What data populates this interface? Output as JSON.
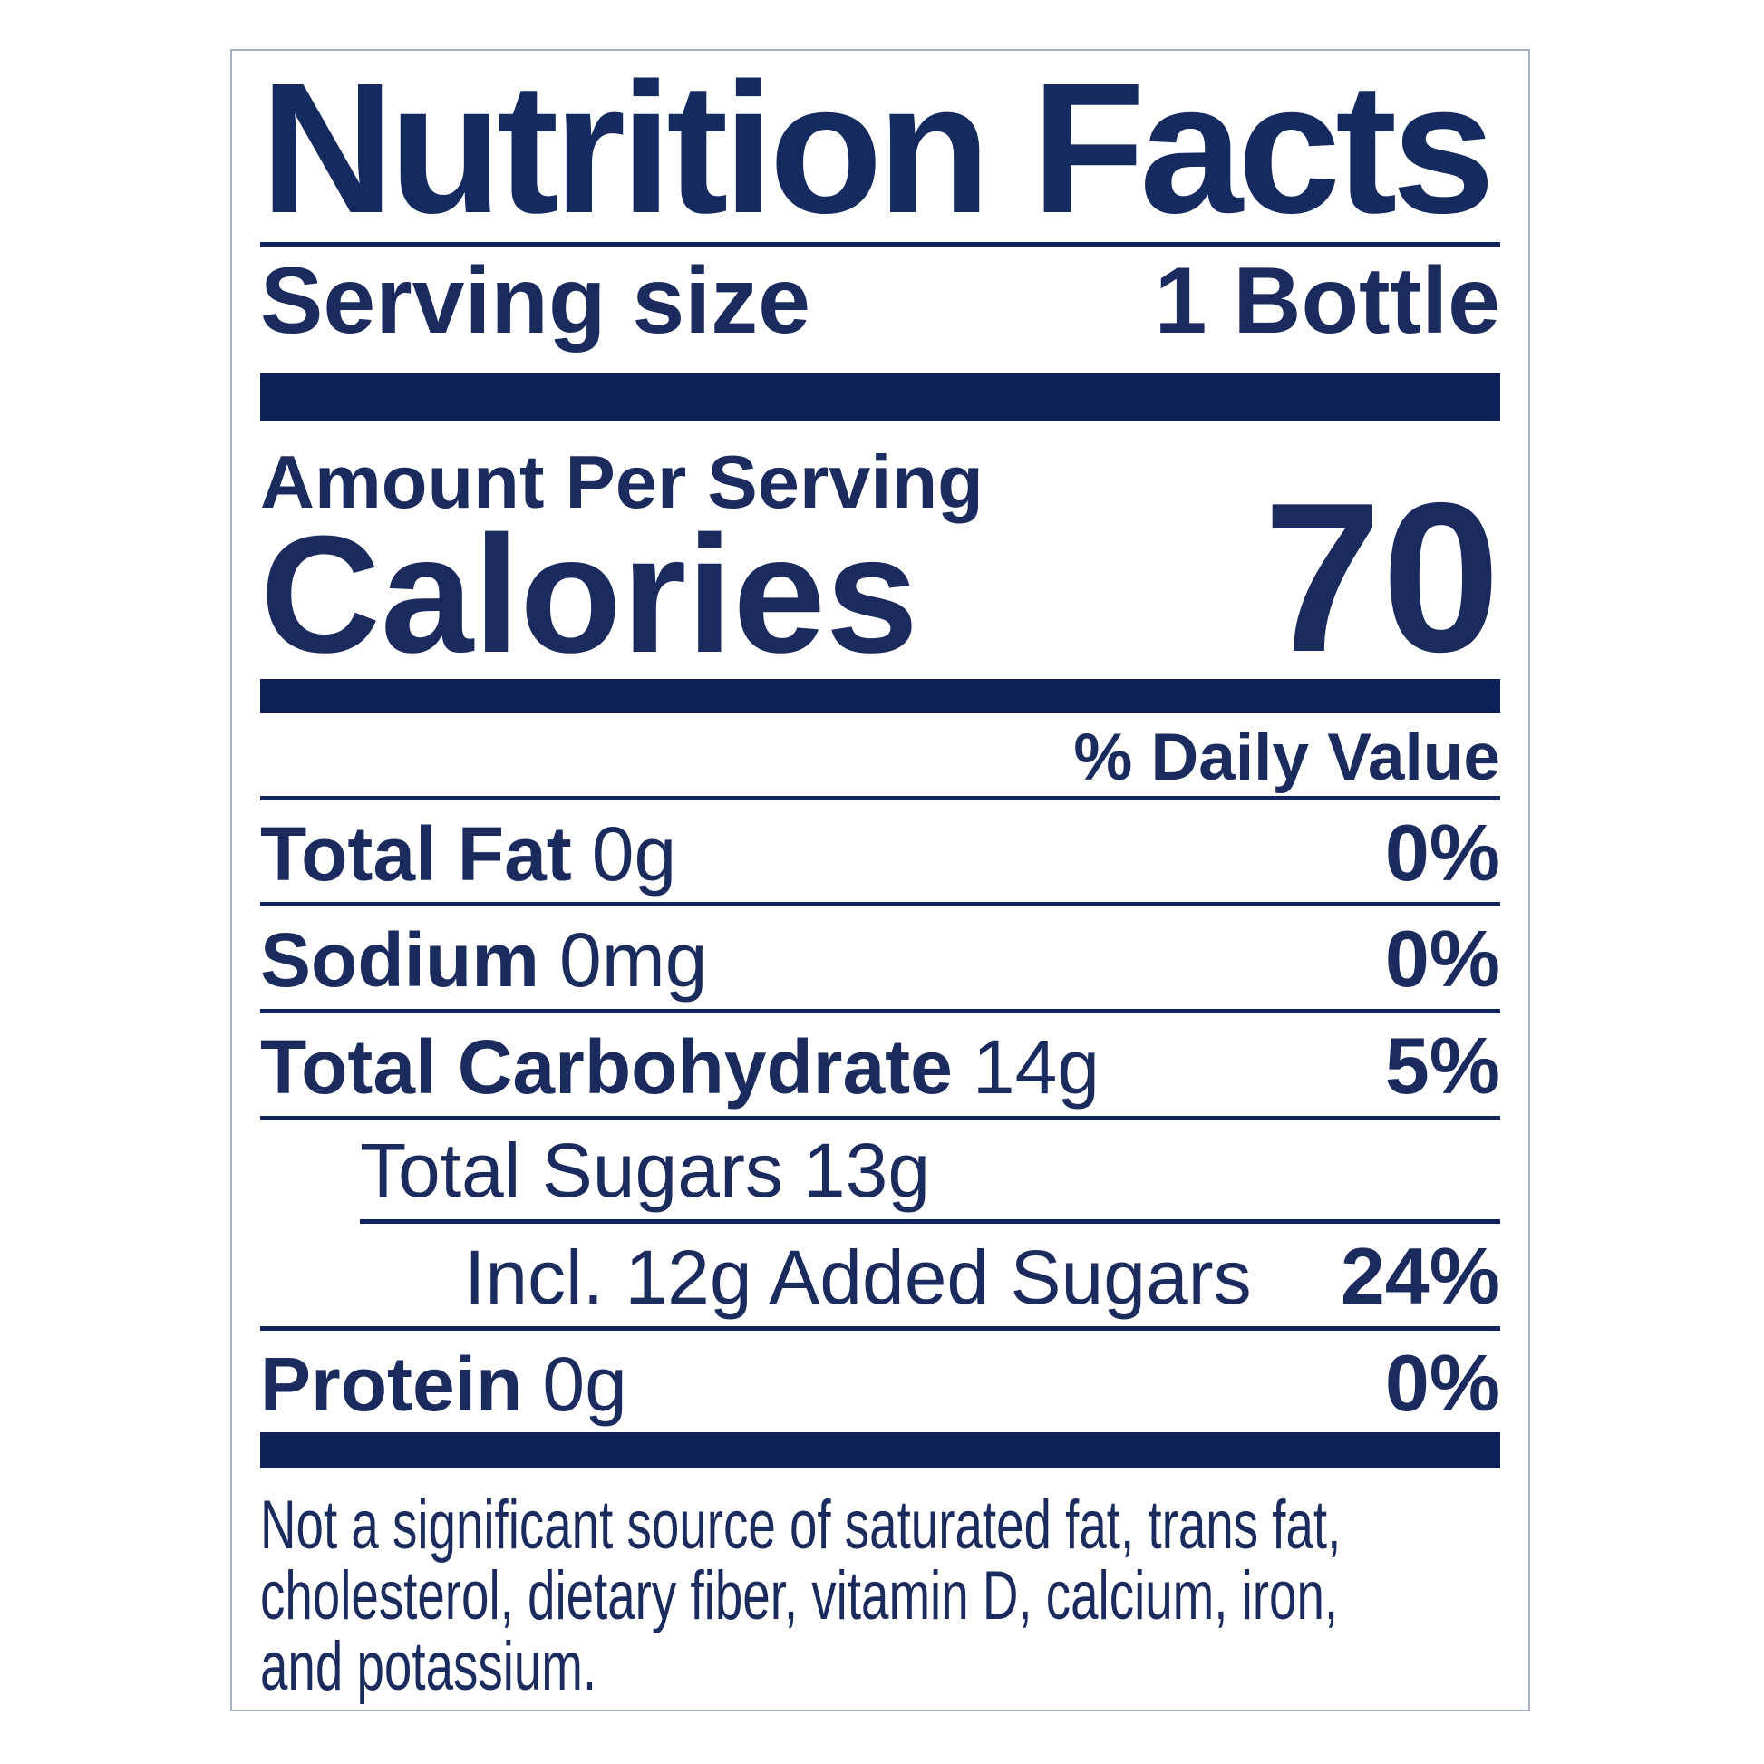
{
  "label": {
    "title": "Nutrition Facts",
    "serving": {
      "label": "Serving size",
      "value": "1 Bottle"
    },
    "amount_per_serving": "Amount Per Serving",
    "calories": {
      "label": "Calories",
      "value": "70"
    },
    "daily_value_header": "% Daily Value",
    "rows": [
      {
        "label": "Total Fat",
        "amount": "0g",
        "dv": "0%"
      },
      {
        "label": "Sodium",
        "amount": "0mg",
        "dv": "0%"
      },
      {
        "label": "Total Carbohydrate",
        "amount": "14g",
        "dv": "5%"
      },
      {
        "label": "Total Sugars",
        "amount": "13g",
        "dv": ""
      },
      {
        "label": "Incl. 12g Added Sugars",
        "amount": "",
        "dv": "24%"
      },
      {
        "label": "Protein",
        "amount": "0g",
        "dv": "0%"
      }
    ],
    "footnote": {
      "lines": [
        "Not a significant source of saturated fat, trans fat,",
        "cholesterol, dietary fiber, vitamin D, calcium, iron,",
        "and potassium."
      ]
    },
    "colors": {
      "text_navy": "#1b2b5e",
      "bar_navy": "#0d2157",
      "border_gray": "#aab0c2",
      "background": "#ffffff"
    }
  }
}
